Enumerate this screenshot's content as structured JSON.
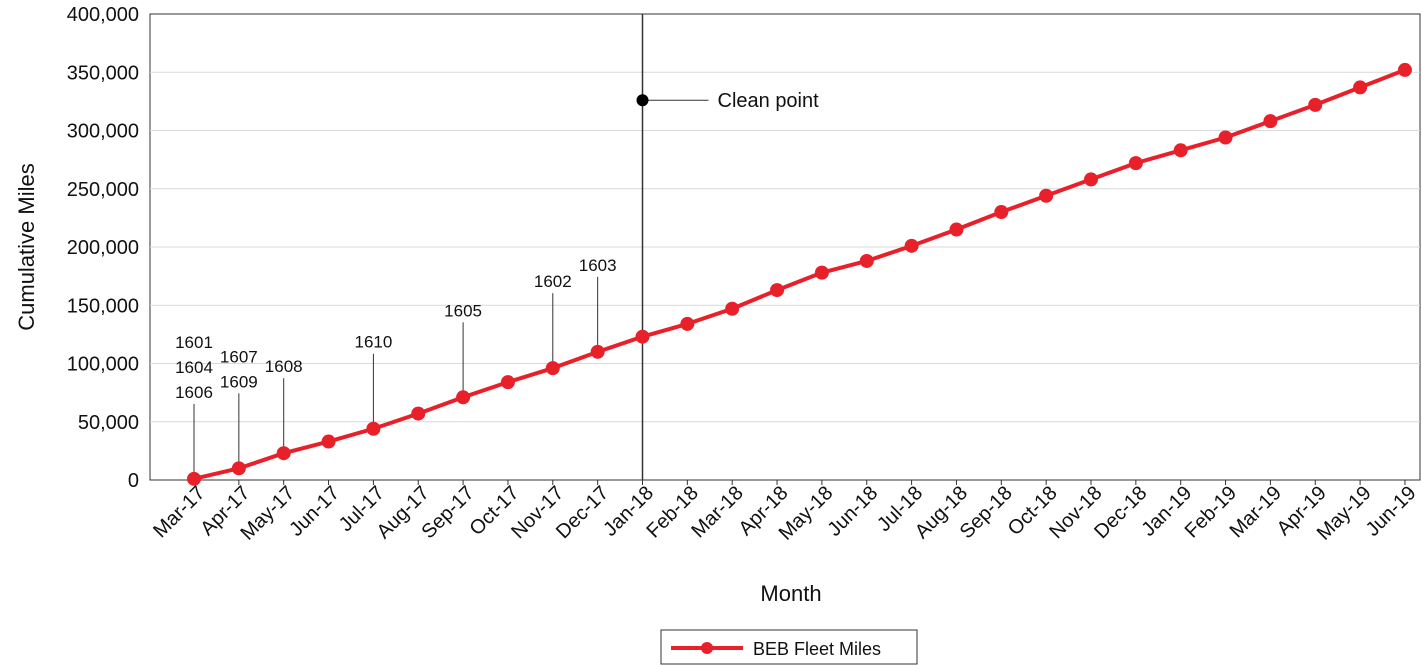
{
  "chart_data": {
    "type": "line",
    "xlabel": "Month",
    "ylabel": "Cumulative Miles",
    "ylim": [
      0,
      400000
    ],
    "y_ticks": [
      "0",
      "50,000",
      "100,000",
      "150,000",
      "200,000",
      "250,000",
      "300,000",
      "350,000",
      "400,000"
    ],
    "y_tick_values": [
      0,
      50000,
      100000,
      150000,
      200000,
      250000,
      300000,
      350000,
      400000
    ],
    "grid": "horizontal",
    "legend_position": "bottom-center",
    "categories": [
      "Mar-17",
      "Apr-17",
      "May-17",
      "Jun-17",
      "Jul-17",
      "Aug-17",
      "Sep-17",
      "Oct-17",
      "Nov-17",
      "Dec-17",
      "Jan-18",
      "Feb-18",
      "Mar-18",
      "Apr-18",
      "May-18",
      "Jun-18",
      "Jul-18",
      "Aug-18",
      "Sep-18",
      "Oct-18",
      "Nov-18",
      "Dec-18",
      "Jan-19",
      "Feb-19",
      "Mar-19",
      "Apr-19",
      "May-19",
      "Jun-19"
    ],
    "series": [
      {
        "name": "BEB Fleet Miles",
        "color": "#e8202a",
        "values": [
          1000,
          10000,
          23000,
          33000,
          44000,
          57000,
          71000,
          84000,
          96000,
          110000,
          123000,
          134000,
          147000,
          163000,
          178000,
          188000,
          201000,
          215000,
          230000,
          244000,
          258000,
          272000,
          283000,
          294000,
          308000,
          322000,
          337000,
          352000
        ]
      }
    ],
    "vertical_line": {
      "category": "Jan-18",
      "color": "#333333"
    },
    "clean_point": {
      "category": "Jan-18",
      "value": 326000,
      "label": "Clean point"
    },
    "annotations": [
      {
        "category": "Mar-17",
        "labels": [
          "1601",
          "1604",
          "1606"
        ]
      },
      {
        "category": "Apr-17",
        "labels": [
          "1607",
          "1609"
        ]
      },
      {
        "category": "May-17",
        "labels": [
          "1608"
        ]
      },
      {
        "category": "Jul-17",
        "labels": [
          "1610"
        ]
      },
      {
        "category": "Sep-17",
        "labels": [
          "1605"
        ]
      },
      {
        "category": "Nov-17",
        "labels": [
          "1602"
        ]
      },
      {
        "category": "Dec-17",
        "labels": [
          "1603"
        ]
      }
    ]
  }
}
